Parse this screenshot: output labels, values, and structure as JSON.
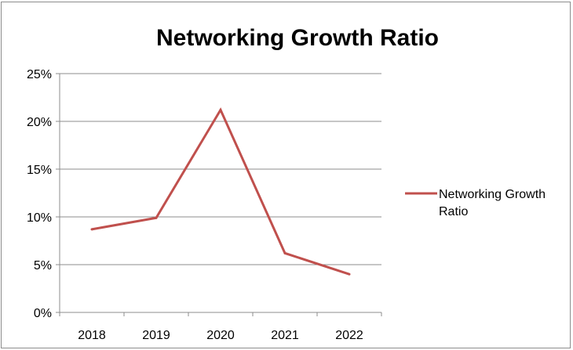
{
  "chart_data": {
    "type": "line",
    "title": "Networking Growth Ratio",
    "categories": [
      "2018",
      "2019",
      "2020",
      "2021",
      "2022"
    ],
    "series": [
      {
        "name": "Networking Growth Ratio",
        "values": [
          8.7,
          9.9,
          21.2,
          6.2,
          4.0
        ],
        "color": "#c0504d"
      }
    ],
    "ylim": [
      0,
      25
    ],
    "yticks": [
      0,
      5,
      10,
      15,
      20,
      25
    ],
    "ytick_labels": [
      "0%",
      "5%",
      "10%",
      "15%",
      "20%",
      "25%"
    ],
    "grid": true,
    "legend": {
      "position": "right",
      "lines": [
        "Networking Growth",
        "Ratio"
      ]
    }
  }
}
